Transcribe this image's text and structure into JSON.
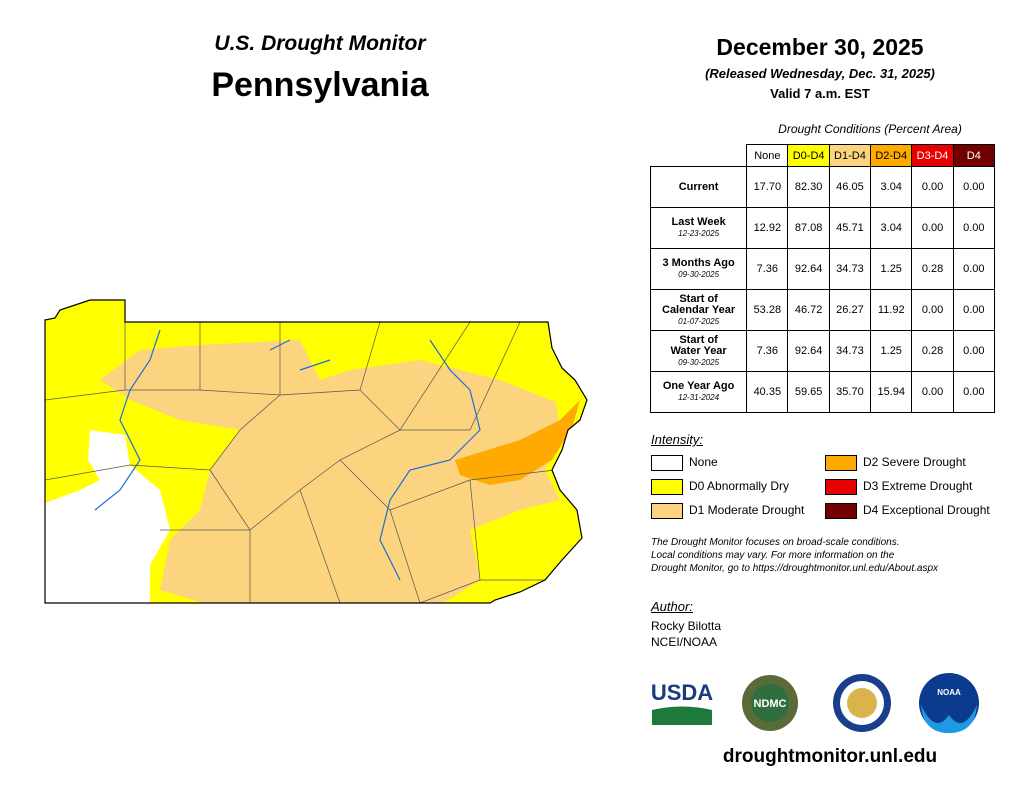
{
  "header": {
    "subtitle": "U.S. Drought Monitor",
    "title": "Pennsylvania"
  },
  "dates": {
    "date": "December 30, 2025",
    "released": "(Released Wednesday, Dec. 31, 2025)",
    "valid": "Valid 7 a.m. EST"
  },
  "table": {
    "caption": "Drought Conditions (Percent Area)",
    "columns": [
      {
        "label": "None",
        "color": "#ffffff",
        "text": "#000000"
      },
      {
        "label": "D0-D4",
        "color": "#ffff00",
        "text": "#000000"
      },
      {
        "label": "D1-D4",
        "color": "#fcd37f",
        "text": "#000000"
      },
      {
        "label": "D2-D4",
        "color": "#ffaa00",
        "text": "#000000"
      },
      {
        "label": "D3-D4",
        "color": "#e60000",
        "text": "#ffffff"
      },
      {
        "label": "D4",
        "color": "#730000",
        "text": "#ffffff"
      }
    ],
    "rows": [
      {
        "label": [
          "Current"
        ],
        "values": [
          "17.70",
          "82.30",
          "46.05",
          "3.04",
          "0.00",
          "0.00"
        ]
      },
      {
        "label": [
          "Last Week"
        ],
        "date": "12-23-2025",
        "values": [
          "12.92",
          "87.08",
          "45.71",
          "3.04",
          "0.00",
          "0.00"
        ]
      },
      {
        "label": [
          "3 Months Ago"
        ],
        "date": "09-30-2025",
        "values": [
          "7.36",
          "92.64",
          "34.73",
          "1.25",
          "0.28",
          "0.00"
        ]
      },
      {
        "label": [
          "Start of",
          "Calendar Year"
        ],
        "date": "01-07-2025",
        "values": [
          "53.28",
          "46.72",
          "26.27",
          "11.92",
          "0.00",
          "0.00"
        ]
      },
      {
        "label": [
          "Start of",
          "Water Year"
        ],
        "date": "09-30-2025",
        "values": [
          "7.36",
          "92.64",
          "34.73",
          "1.25",
          "0.28",
          "0.00"
        ]
      },
      {
        "label": [
          "One Year Ago"
        ],
        "date": "12-31-2024",
        "values": [
          "40.35",
          "59.65",
          "35.70",
          "15.94",
          "0.00",
          "0.00"
        ]
      }
    ]
  },
  "legend": {
    "title": "Intensity:",
    "items": [
      {
        "label": "None",
        "color": "#ffffff"
      },
      {
        "label": "D0 Abnormally Dry",
        "color": "#ffff00"
      },
      {
        "label": "D1 Moderate Drought",
        "color": "#fcd37f"
      },
      {
        "label": "D2 Severe Drought",
        "color": "#ffaa00"
      },
      {
        "label": "D3 Extreme Drought",
        "color": "#e60000"
      },
      {
        "label": "D4 Exceptional Drought",
        "color": "#730000"
      }
    ]
  },
  "note": [
    "The Drought Monitor focuses on broad-scale conditions.",
    "Local conditions may vary. For more information on the",
    "Drought Monitor, go to https://droughtmonitor.unl.edu/About.aspx"
  ],
  "author": {
    "title": "Author:",
    "lines": [
      "Rocky Bilotta",
      "NCEI/NOAA"
    ]
  },
  "logos": {
    "usda": "USDA",
    "ndmc": "NDMC",
    "noaa": "NOAA"
  },
  "footer": "droughtmonitor.unl.edu"
}
